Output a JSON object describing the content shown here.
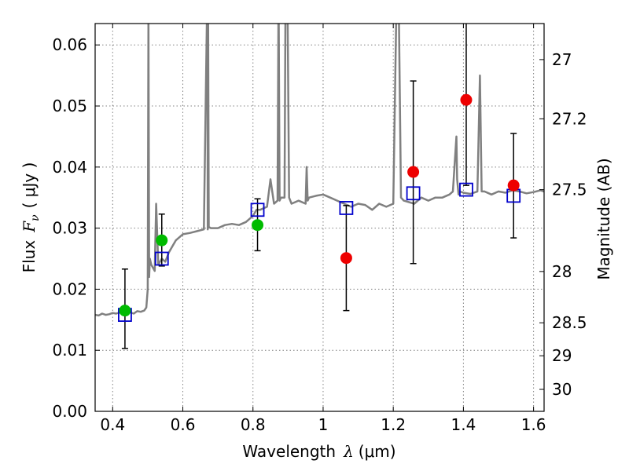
{
  "chart_data": {
    "type": "scatter",
    "xlabel": "Wavelength",
    "xlabel_symbol": "λ",
    "xlabel_unit": "(μm)",
    "ylabel": "Flux",
    "ylabel_symbol": "F",
    "ylabel_subscript": "ν",
    "ylabel_unit": "( μJy )",
    "y2label": "Magnitude (AB)",
    "xlim": [
      0.35,
      1.63
    ],
    "ylim": [
      0.0,
      0.0635
    ],
    "grid": true,
    "x_ticks": [
      0.4,
      0.6,
      0.8,
      1.0,
      1.2,
      1.4,
      1.6
    ],
    "x_tick_labels": [
      "0.4",
      "0.6",
      "0.8",
      "1",
      "1.2",
      "1.4",
      "1.6"
    ],
    "y_ticks": [
      0.0,
      0.01,
      0.02,
      0.03,
      0.04,
      0.05,
      0.06
    ],
    "y_tick_labels": [
      "0.00",
      "0.01",
      "0.02",
      "0.03",
      "0.04",
      "0.05",
      "0.06"
    ],
    "y2_ticks": [
      {
        "label": "27",
        "flux": 0.0576
      },
      {
        "label": "27.2",
        "flux": 0.0479
      },
      {
        "label": "27.5",
        "flux": 0.0363
      },
      {
        "label": "28",
        "flux": 0.0229
      },
      {
        "label": "28.5",
        "flux": 0.0145
      },
      {
        "label": "29",
        "flux": 0.0091
      },
      {
        "label": "30",
        "flux": 0.0036
      }
    ],
    "colors": {
      "spectrum": "#808080",
      "model_box": "#0000cc",
      "green_points": "#00bb00",
      "red_points": "#ee0000",
      "errorbar": "#000000",
      "grid": "#808080"
    },
    "series": [
      {
        "name": "model_spectrum",
        "type": "line",
        "x": [
          0.35,
          0.36,
          0.37,
          0.38,
          0.39,
          0.4,
          0.41,
          0.42,
          0.43,
          0.44,
          0.45,
          0.46,
          0.47,
          0.48,
          0.49,
          0.496,
          0.5,
          0.502,
          0.504,
          0.506,
          0.51,
          0.52,
          0.524,
          0.53,
          0.54,
          0.55,
          0.56,
          0.57,
          0.58,
          0.59,
          0.6,
          0.62,
          0.64,
          0.66,
          0.67,
          0.671,
          0.672,
          0.674,
          0.68,
          0.7,
          0.72,
          0.74,
          0.76,
          0.78,
          0.8,
          0.81,
          0.82,
          0.84,
          0.85,
          0.86,
          0.87,
          0.873,
          0.876,
          0.88,
          0.89,
          0.893,
          0.898,
          0.903,
          0.91,
          0.93,
          0.95,
          0.953,
          0.956,
          0.96,
          0.98,
          1.0,
          1.02,
          1.04,
          1.06,
          1.08,
          1.1,
          1.12,
          1.14,
          1.16,
          1.18,
          1.2,
          1.21,
          1.215,
          1.222,
          1.23,
          1.26,
          1.28,
          1.3,
          1.32,
          1.34,
          1.36,
          1.37,
          1.38,
          1.382,
          1.386,
          1.39,
          1.4,
          1.42,
          1.44,
          1.447,
          1.452,
          1.46,
          1.48,
          1.5,
          1.52,
          1.54,
          1.56,
          1.58,
          1.6,
          1.62,
          1.63
        ],
        "y": [
          0.0158,
          0.0157,
          0.016,
          0.0158,
          0.0159,
          0.0161,
          0.016,
          0.0162,
          0.0159,
          0.0163,
          0.0162,
          0.016,
          0.0164,
          0.0163,
          0.0165,
          0.017,
          0.02,
          0.065,
          0.022,
          0.025,
          0.024,
          0.023,
          0.034,
          0.024,
          0.025,
          0.0245,
          0.026,
          0.027,
          0.028,
          0.0285,
          0.029,
          0.0292,
          0.0295,
          0.0298,
          0.07,
          0.0298,
          0.07,
          0.0302,
          0.03,
          0.03,
          0.0305,
          0.0307,
          0.0305,
          0.031,
          0.032,
          0.033,
          0.033,
          0.0335,
          0.038,
          0.034,
          0.0345,
          0.07,
          0.0345,
          0.035,
          0.035,
          0.07,
          0.07,
          0.035,
          0.034,
          0.0345,
          0.034,
          0.04,
          0.0345,
          0.035,
          0.0353,
          0.0355,
          0.035,
          0.0345,
          0.034,
          0.0335,
          0.034,
          0.0338,
          0.033,
          0.034,
          0.0335,
          0.034,
          0.07,
          0.07,
          0.035,
          0.0345,
          0.034,
          0.035,
          0.0345,
          0.035,
          0.035,
          0.0355,
          0.036,
          0.045,
          0.038,
          0.0355,
          0.036,
          0.0358,
          0.0356,
          0.036,
          0.055,
          0.036,
          0.036,
          0.0355,
          0.036,
          0.0358,
          0.0362,
          0.036,
          0.0357,
          0.0359,
          0.0362,
          0.036
        ]
      },
      {
        "name": "model_fluxes",
        "type": "square",
        "x": [
          0.435,
          0.54,
          0.813,
          1.066,
          1.257,
          1.408,
          1.543
        ],
        "y": [
          0.0158,
          0.025,
          0.033,
          0.0333,
          0.0357,
          0.0363,
          0.0353
        ]
      },
      {
        "name": "detections",
        "type": "point",
        "x": [
          0.435,
          0.54,
          0.813
        ],
        "y": [
          0.0165,
          0.028,
          0.0305
        ],
        "yerr_low": [
          0.0103,
          0.0238,
          0.0263
        ],
        "yerr_high": [
          0.0233,
          0.0323,
          0.0348
        ]
      },
      {
        "name": "marginal_detections",
        "type": "point",
        "x": [
          1.066,
          1.257,
          1.408,
          1.543
        ],
        "y": [
          0.0251,
          0.0392,
          0.051,
          0.037
        ],
        "yerr_low": [
          0.0165,
          0.0242,
          0.037,
          0.0284
        ],
        "yerr_high": [
          0.0337,
          0.0541,
          0.07,
          0.0455
        ]
      }
    ]
  }
}
